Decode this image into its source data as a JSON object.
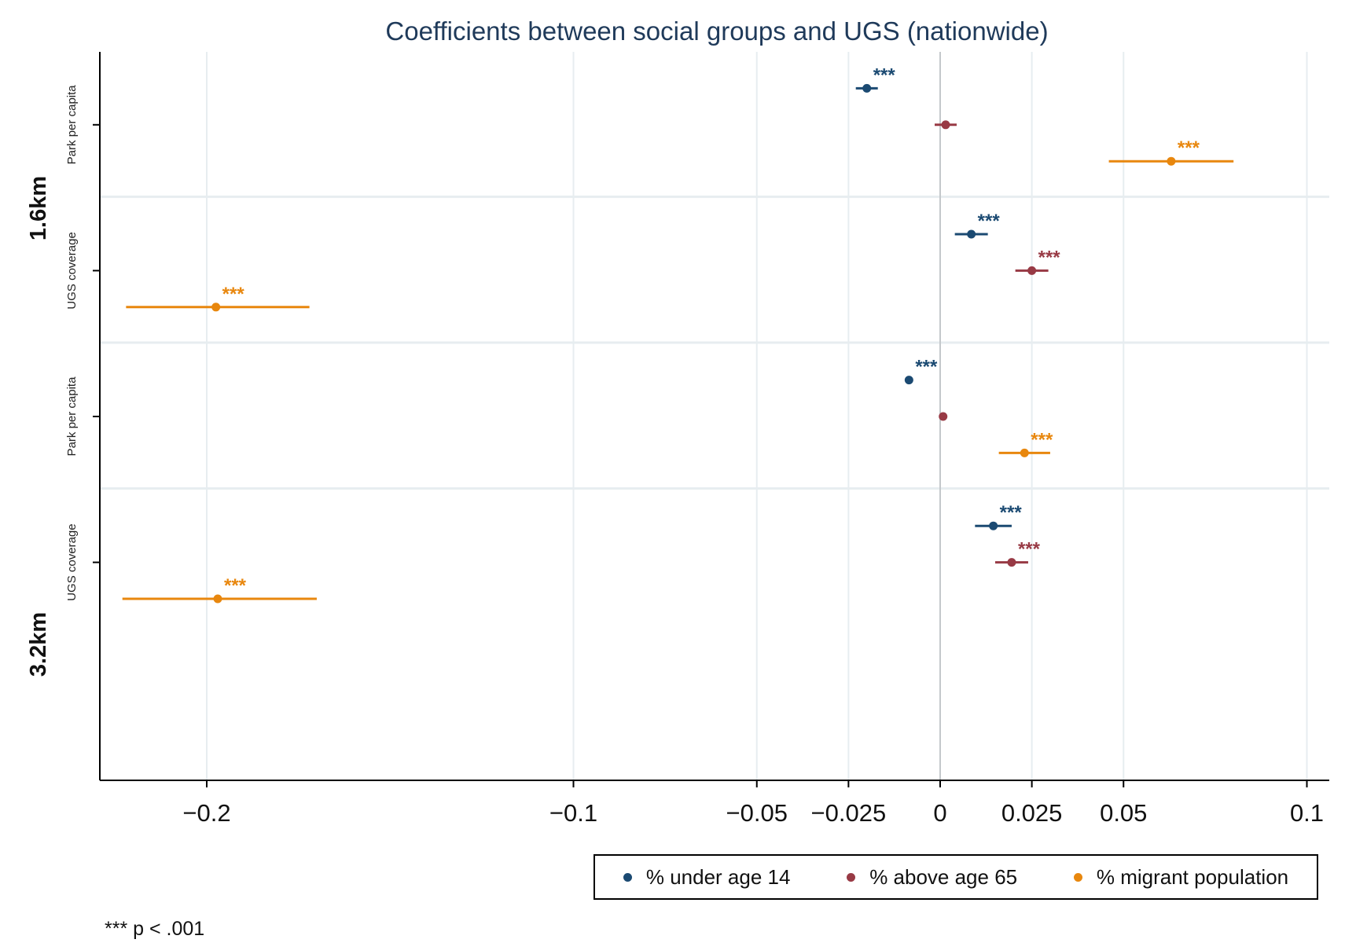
{
  "chart_data": {
    "type": "scatter",
    "title": "Coefficients between social groups and UGS (nationwide)",
    "x_ticks": [
      {
        "value": -0.2,
        "label": "−0.2"
      },
      {
        "value": -0.1,
        "label": "−0.1"
      },
      {
        "value": -0.05,
        "label": "−0.05"
      },
      {
        "value": -0.025,
        "label": "−0.025"
      },
      {
        "value": 0,
        "label": "0"
      },
      {
        "value": 0.025,
        "label": "0.025"
      },
      {
        "value": 0.05,
        "label": "0.05"
      },
      {
        "value": 0.1,
        "label": "0.1"
      }
    ],
    "xlim": [
      -0.229,
      0.106
    ],
    "reference_line": 0,
    "groups": [
      {
        "label": "1.6km",
        "rows": [
          {
            "label": "Park per capita"
          },
          {
            "label": "UGS coverage"
          }
        ]
      },
      {
        "label": "3.2km",
        "rows": [
          {
            "label": "Park per capita"
          },
          {
            "label": "UGS coverage"
          }
        ]
      }
    ],
    "series": [
      {
        "name": "% under age 14",
        "color": "#1b4a72",
        "points": [
          {
            "group": "1.6km",
            "row": "Park per capita",
            "value": -0.02,
            "ci": [
              -0.023,
              -0.017
            ],
            "sig": "***"
          },
          {
            "group": "1.6km",
            "row": "UGS coverage",
            "value": 0.0085,
            "ci": [
              0.004,
              0.013
            ],
            "sig": "***"
          },
          {
            "group": "3.2km",
            "row": "Park per capita",
            "value": -0.0085,
            "ci": [
              -0.0085,
              -0.0085
            ],
            "sig": "***"
          },
          {
            "group": "3.2km",
            "row": "UGS coverage",
            "value": 0.0145,
            "ci": [
              0.0095,
              0.0195
            ],
            "sig": "***"
          }
        ]
      },
      {
        "name": "% above age 65",
        "color": "#983a45",
        "points": [
          {
            "group": "1.6km",
            "row": "Park per capita",
            "value": 0.0015,
            "ci": [
              -0.0015,
              0.0045
            ],
            "sig": ""
          },
          {
            "group": "1.6km",
            "row": "UGS coverage",
            "value": 0.025,
            "ci": [
              0.0205,
              0.0295
            ],
            "sig": "***"
          },
          {
            "group": "3.2km",
            "row": "Park per capita",
            "value": 0.0008,
            "ci": [
              0.0008,
              0.0008
            ],
            "sig": ""
          },
          {
            "group": "3.2km",
            "row": "UGS coverage",
            "value": 0.0195,
            "ci": [
              0.015,
              0.024
            ],
            "sig": "***"
          }
        ]
      },
      {
        "name": "% migrant population",
        "color": "#e8870e",
        "points": [
          {
            "group": "1.6km",
            "row": "Park per capita",
            "value": 0.063,
            "ci": [
              0.046,
              0.08
            ],
            "sig": "***"
          },
          {
            "group": "1.6km",
            "row": "UGS coverage",
            "value": -0.1975,
            "ci": [
              -0.222,
              -0.172
            ],
            "sig": "***"
          },
          {
            "group": "3.2km",
            "row": "Park per capita",
            "value": 0.023,
            "ci": [
              0.016,
              0.03
            ],
            "sig": "***"
          },
          {
            "group": "3.2km",
            "row": "UGS coverage",
            "value": -0.197,
            "ci": [
              -0.223,
              -0.17
            ],
            "sig": "***"
          }
        ]
      }
    ],
    "legend": [
      "% under age 14",
      "% above age 65",
      "% migrant population"
    ],
    "legend_position": "bottom-right",
    "footnote": "*** p < .001"
  }
}
